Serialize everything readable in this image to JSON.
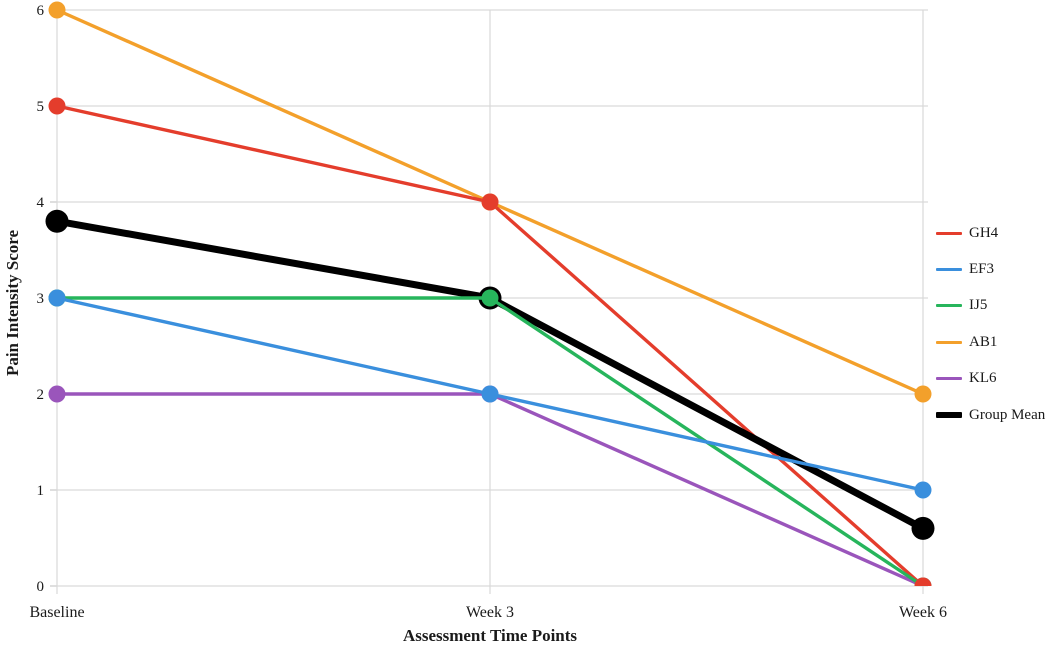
{
  "figure": {
    "background": "#ffffff"
  },
  "chart_data": {
    "type": "line",
    "title": "",
    "xlabel": "Assessment Time Points",
    "ylabel": "Pain Intensity Score",
    "categories": [
      "Baseline",
      "Week 3",
      "Week 6"
    ],
    "yticks": [
      "0",
      "1",
      "2",
      "3",
      "4",
      "5",
      "6"
    ],
    "ytick_values": [
      0,
      1,
      2,
      3,
      4,
      5,
      6
    ],
    "ylim": [
      0,
      6
    ],
    "grid": true,
    "legend_position": "right",
    "series": [
      {
        "name": "GH4",
        "color": "#e43d2c",
        "values": [
          5,
          4,
          0
        ],
        "line_width": 3.4,
        "marker_radius": 8.5
      },
      {
        "name": "EF3",
        "color": "#3a8fdd",
        "values": [
          3,
          2,
          1
        ],
        "line_width": 3.4,
        "marker_radius": 8.5
      },
      {
        "name": "IJ5",
        "color": "#27b55c",
        "values": [
          3,
          3,
          0
        ],
        "line_width": 3.4,
        "marker_radius": 8.5
      },
      {
        "name": "AB1",
        "color": "#f3a02b",
        "values": [
          6,
          4,
          2
        ],
        "line_width": 3.4,
        "marker_radius": 8.5
      },
      {
        "name": "KL6",
        "color": "#9a55bb",
        "values": [
          2,
          2,
          0
        ],
        "line_width": 3.4,
        "marker_radius": 8.5
      },
      {
        "name": "Group Mean",
        "color": "#000000",
        "values": [
          3.8,
          3,
          0.6
        ],
        "line_width": 7,
        "marker_radius": 11.5
      }
    ],
    "draw_order": {
      "lines": [
        "AB1",
        "KL6",
        "GH4",
        "Group Mean",
        "IJ5",
        "EF3"
      ],
      "markers": [
        "Group Mean",
        "AB1",
        "KL6",
        "IJ5",
        "EF3",
        "GH4"
      ]
    },
    "colors": {
      "grid": "#d9d9d9",
      "axis": "#c9c9c9",
      "text": "#1a1a1a"
    }
  }
}
